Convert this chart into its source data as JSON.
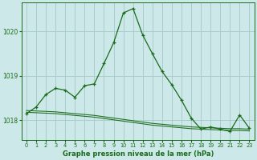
{
  "background_color": "#cce8e8",
  "grid_color": "#aacccc",
  "line_color": "#1a6b1a",
  "xlabel": "Graphe pression niveau de la mer (hPa)",
  "ylim": [
    1017.55,
    1020.65
  ],
  "xlim": [
    -0.5,
    23.5
  ],
  "yticks": [
    1018,
    1019,
    1020
  ],
  "xticks": [
    0,
    1,
    2,
    3,
    4,
    5,
    6,
    7,
    8,
    9,
    10,
    11,
    12,
    13,
    14,
    15,
    16,
    17,
    18,
    19,
    20,
    21,
    22,
    23
  ],
  "series1": [
    1018.15,
    1018.3,
    1018.58,
    1018.72,
    1018.68,
    1018.52,
    1018.78,
    1018.82,
    1019.28,
    1019.75,
    1020.42,
    1020.52,
    1019.92,
    1019.5,
    1019.1,
    1018.8,
    1018.45,
    1018.05,
    1017.8,
    1017.85,
    1017.8,
    1017.75,
    1018.12,
    1017.82
  ],
  "line2": [
    1018.18,
    1018.17,
    1018.16,
    1018.15,
    1018.13,
    1018.11,
    1018.09,
    1018.07,
    1018.04,
    1018.01,
    1017.98,
    1017.95,
    1017.92,
    1017.89,
    1017.87,
    1017.85,
    1017.83,
    1017.81,
    1017.8,
    1017.79,
    1017.78,
    1017.77,
    1017.77,
    1017.76
  ],
  "line3": [
    1018.22,
    1018.21,
    1018.2,
    1018.19,
    1018.17,
    1018.15,
    1018.13,
    1018.11,
    1018.08,
    1018.05,
    1018.02,
    1017.99,
    1017.96,
    1017.93,
    1017.91,
    1017.89,
    1017.87,
    1017.85,
    1017.84,
    1017.83,
    1017.82,
    1017.81,
    1017.81,
    1017.8
  ]
}
